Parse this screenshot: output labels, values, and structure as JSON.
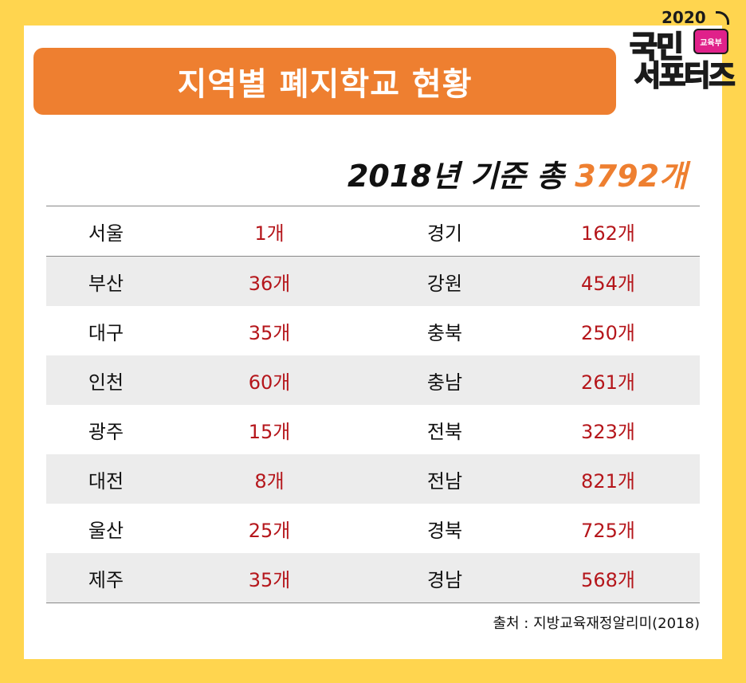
{
  "header": {
    "title": "지역별 폐지학교 현황",
    "subtitle_prefix": "2018년 기준 총 ",
    "subtitle_total": "3792개"
  },
  "logo": {
    "year": "2020",
    "line1": "국민",
    "badge": "교육부",
    "line2": "서포터즈"
  },
  "source": "출처 : 지방교육재정알리미(2018)",
  "colors": {
    "background": "#FFD54F",
    "banner": "#EE7F30",
    "value_text": "#B5161B",
    "row_shade": "#ECECEC"
  },
  "chart_data": {
    "type": "table",
    "title": "지역별 폐지학교 현황",
    "subtitle": "2018년 기준 총 3792개",
    "total": 3792,
    "unit": "개",
    "rows": [
      {
        "left_region": "서울",
        "left_value": "1개",
        "right_region": "경기",
        "right_value": "162개"
      },
      {
        "left_region": "부산",
        "left_value": "36개",
        "right_region": "강원",
        "right_value": "454개"
      },
      {
        "left_region": "대구",
        "left_value": "35개",
        "right_region": "충북",
        "right_value": "250개"
      },
      {
        "left_region": "인천",
        "left_value": "60개",
        "right_region": "충남",
        "right_value": "261개"
      },
      {
        "left_region": "광주",
        "left_value": "15개",
        "right_region": "전북",
        "right_value": "323개"
      },
      {
        "left_region": "대전",
        "left_value": "8개",
        "right_region": "전남",
        "right_value": "821개"
      },
      {
        "left_region": "울산",
        "left_value": "25개",
        "right_region": "경북",
        "right_value": "725개"
      },
      {
        "left_region": "제주",
        "left_value": "35개",
        "right_region": "경남",
        "right_value": "568개"
      }
    ],
    "source": "출처 : 지방교육재정알리미(2018)"
  }
}
